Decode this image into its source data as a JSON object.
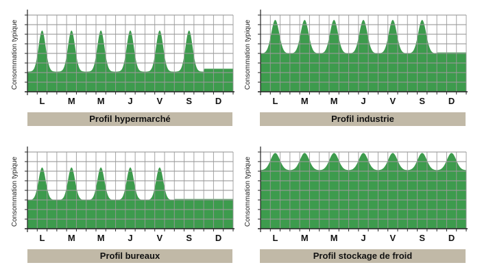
{
  "colors": {
    "area": "#3d9b4d",
    "grid": "#9a9a9a",
    "title_bar": "#c1b9a7"
  },
  "chart_data": [
    {
      "type": "area",
      "title": "Profil hypermarché",
      "ylabel": "Consommation typique",
      "categories": [
        "L",
        "M",
        "M",
        "J",
        "V",
        "S",
        "D"
      ],
      "ylim": [
        0,
        8
      ],
      "grid": true,
      "peak": [
        6.4,
        6.4,
        6.4,
        6.4,
        6.4,
        6.4,
        2.4
      ],
      "trough": [
        2.1,
        2.1,
        2.1,
        2.1,
        2.1,
        2.1,
        2.4
      ],
      "peak_width": 0.17
    },
    {
      "type": "area",
      "title": "Profil industrie",
      "ylabel": "Consommation typique",
      "categories": [
        "L",
        "M",
        "M",
        "J",
        "V",
        "S",
        "D"
      ],
      "ylim": [
        0,
        8
      ],
      "grid": true,
      "peak": [
        7.5,
        7.5,
        7.5,
        7.5,
        7.5,
        7.5,
        4.1
      ],
      "trough": [
        4.0,
        4.0,
        4.0,
        4.0,
        4.0,
        4.0,
        4.1
      ],
      "peak_width": 0.19
    },
    {
      "type": "area",
      "title": "Profil bureaux",
      "ylabel": "Consommation typique",
      "categories": [
        "L",
        "M",
        "M",
        "J",
        "V",
        "S",
        "D"
      ],
      "ylim": [
        0,
        8
      ],
      "grid": true,
      "peak": [
        6.4,
        6.4,
        6.4,
        6.4,
        6.4,
        3.1,
        3.1
      ],
      "trough": [
        3.0,
        3.0,
        3.0,
        3.0,
        3.0,
        3.1,
        3.1
      ],
      "peak_width": 0.17
    },
    {
      "type": "area",
      "title": "Profil stockage de froid",
      "ylabel": "Consommation typique",
      "categories": [
        "L",
        "M",
        "M",
        "J",
        "V",
        "S",
        "D"
      ],
      "ylim": [
        0,
        8
      ],
      "grid": true,
      "peak": [
        7.9,
        7.9,
        7.9,
        7.9,
        7.9,
        7.9,
        7.9
      ],
      "trough": [
        6.1,
        6.1,
        6.1,
        6.1,
        6.1,
        6.1,
        6.1
      ],
      "peak_width": 0.22
    }
  ]
}
